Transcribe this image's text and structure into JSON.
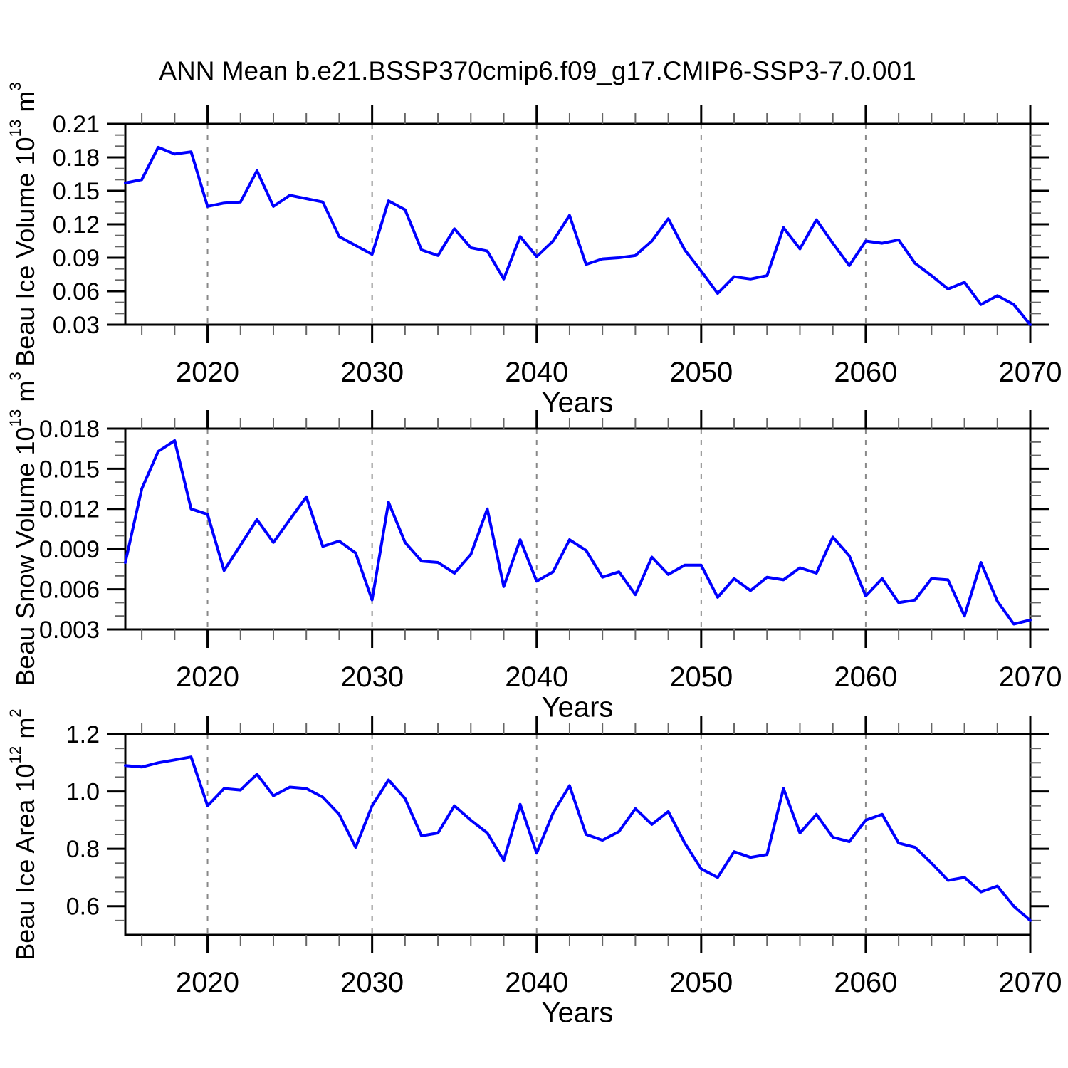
{
  "title": "ANN Mean b.e21.BSSP370cmip6.f09_g17.CMIP6-SSP3-7.0.001",
  "line_color": "#0000ff",
  "axis_color": "#000000",
  "grid_color": "#888888",
  "years": [
    2015,
    2016,
    2017,
    2018,
    2019,
    2020,
    2021,
    2022,
    2023,
    2024,
    2025,
    2026,
    2027,
    2028,
    2029,
    2030,
    2031,
    2032,
    2033,
    2034,
    2035,
    2036,
    2037,
    2038,
    2039,
    2040,
    2041,
    2042,
    2043,
    2044,
    2045,
    2046,
    2047,
    2048,
    2049,
    2050,
    2051,
    2052,
    2053,
    2054,
    2055,
    2056,
    2057,
    2058,
    2059,
    2060,
    2061,
    2062,
    2063,
    2064,
    2065,
    2066,
    2067,
    2068,
    2069,
    2070
  ],
  "chart_data": [
    {
      "type": "line",
      "name": "beau-ice-volume",
      "ylabel_text": "Beau Ice Volume 10",
      "ylabel_exp": "13",
      "ylabel_unit": " m",
      "ylabel_unit_exp": "3",
      "xlabel": "Years",
      "x_start": 2015,
      "x_end": 2070,
      "x_major_ticks": [
        2020,
        2030,
        2040,
        2050,
        2060,
        2070
      ],
      "x_minor_step": 2,
      "ylim": [
        0.03,
        0.21
      ],
      "y_ticks": [
        "0.21",
        "0.18",
        "0.15",
        "0.12",
        "0.09",
        "0.06",
        "0.03"
      ],
      "y_minor_step": 0.01,
      "values": [
        0.157,
        0.16,
        0.189,
        0.183,
        0.185,
        0.136,
        0.139,
        0.14,
        0.168,
        0.136,
        0.146,
        0.143,
        0.14,
        0.109,
        0.101,
        0.093,
        0.141,
        0.133,
        0.097,
        0.092,
        0.116,
        0.099,
        0.096,
        0.071,
        0.109,
        0.091,
        0.105,
        0.128,
        0.084,
        0.089,
        0.09,
        0.092,
        0.105,
        0.125,
        0.097,
        0.078,
        0.058,
        0.073,
        0.071,
        0.074,
        0.117,
        0.098,
        0.124,
        0.103,
        0.083,
        0.105,
        0.103,
        0.106,
        0.085,
        0.074,
        0.062,
        0.068,
        0.048,
        0.056,
        0.048,
        0.03
      ]
    },
    {
      "type": "line",
      "name": "beau-snow-volume",
      "ylabel_text": "Beau Snow Volume 10",
      "ylabel_exp": "13",
      "ylabel_unit": " m",
      "ylabel_unit_exp": "3",
      "xlabel": "Years",
      "x_start": 2015,
      "x_end": 2070,
      "x_major_ticks": [
        2020,
        2030,
        2040,
        2050,
        2060,
        2070
      ],
      "x_minor_step": 2,
      "ylim": [
        0.003,
        0.018
      ],
      "y_ticks": [
        "0.018",
        "0.015",
        "0.012",
        "0.009",
        "0.006",
        "0.003"
      ],
      "y_minor_step": 0.001,
      "values": [
        0.008,
        0.0135,
        0.0163,
        0.0171,
        0.012,
        0.0116,
        0.0074,
        0.0093,
        0.0112,
        0.0095,
        0.0112,
        0.0129,
        0.0092,
        0.0096,
        0.0087,
        0.0052,
        0.0125,
        0.0095,
        0.0081,
        0.008,
        0.0072,
        0.0086,
        0.012,
        0.0062,
        0.0097,
        0.0066,
        0.0073,
        0.0097,
        0.0089,
        0.0069,
        0.0073,
        0.0056,
        0.0084,
        0.0071,
        0.0078,
        0.0078,
        0.0054,
        0.0068,
        0.0059,
        0.0069,
        0.0067,
        0.0076,
        0.0072,
        0.0099,
        0.0085,
        0.0055,
        0.0068,
        0.005,
        0.0052,
        0.0068,
        0.0067,
        0.004,
        0.008,
        0.0051,
        0.0034,
        0.0037
      ]
    },
    {
      "type": "line",
      "name": "beau-ice-area",
      "ylabel_text": "Beau Ice Area 10",
      "ylabel_exp": "12",
      "ylabel_unit": " m",
      "ylabel_unit_exp": "2",
      "xlabel": "Years",
      "x_start": 2015,
      "x_end": 2070,
      "x_major_ticks": [
        2020,
        2030,
        2040,
        2050,
        2060,
        2070
      ],
      "x_minor_step": 2,
      "ylim": [
        0.5,
        1.2
      ],
      "y_ticks": [
        "1.2",
        "1.0",
        "0.8",
        "0.6"
      ],
      "y_minor_step": 0.05,
      "values": [
        1.09,
        1.085,
        1.1,
        1.11,
        1.12,
        0.95,
        1.01,
        1.005,
        1.06,
        0.985,
        1.015,
        1.01,
        0.98,
        0.92,
        0.805,
        0.95,
        1.04,
        0.975,
        0.845,
        0.855,
        0.95,
        0.9,
        0.855,
        0.76,
        0.955,
        0.785,
        0.925,
        1.02,
        0.85,
        0.83,
        0.86,
        0.94,
        0.885,
        0.93,
        0.82,
        0.73,
        0.7,
        0.79,
        0.77,
        0.78,
        1.01,
        0.855,
        0.92,
        0.84,
        0.825,
        0.9,
        0.92,
        0.82,
        0.805,
        0.75,
        0.69,
        0.7,
        0.65,
        0.67,
        0.6,
        0.55
      ]
    }
  ]
}
